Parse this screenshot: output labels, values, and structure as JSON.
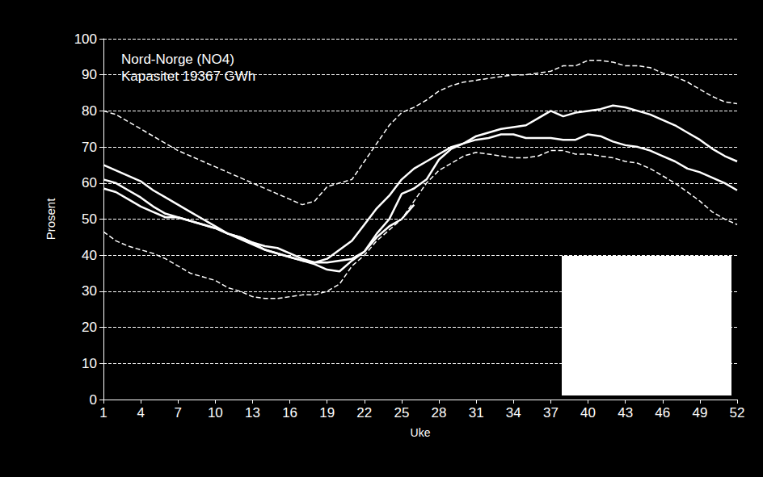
{
  "chart_data": {
    "type": "line",
    "title": "Nord-Norge (NO4)",
    "subtitle": "Kapasitet 19367 GWh",
    "x_label": "Uke",
    "y_label": "Prosent",
    "x": [
      1,
      2,
      3,
      4,
      5,
      6,
      7,
      8,
      9,
      10,
      11,
      12,
      13,
      14,
      15,
      16,
      17,
      18,
      19,
      20,
      21,
      22,
      23,
      24,
      25,
      26,
      27,
      28,
      29,
      30,
      31,
      32,
      33,
      34,
      35,
      36,
      37,
      38,
      39,
      40,
      41,
      42,
      43,
      44,
      45,
      46,
      47,
      48,
      49,
      50,
      51,
      52
    ],
    "xlim": [
      1,
      52
    ],
    "xticks": [
      1,
      4,
      7,
      10,
      13,
      16,
      19,
      22,
      25,
      28,
      31,
      34,
      37,
      40,
      43,
      46,
      49,
      52
    ],
    "ylim": [
      0,
      100
    ],
    "yticks": [
      0,
      10,
      20,
      30,
      40,
      50,
      60,
      70,
      80,
      90,
      100
    ],
    "grid": true,
    "series": [
      {
        "color": "#ffffff",
        "line_style": "dashed",
        "values": [
          80,
          79,
          77,
          75,
          73,
          71,
          69,
          67.5,
          66,
          64.5,
          63,
          61.5,
          60,
          58.5,
          57,
          55.5,
          54,
          55,
          59,
          60,
          61,
          66,
          71,
          76,
          79.5,
          81,
          83,
          85.5,
          87,
          88,
          88.5,
          89,
          89.5,
          90,
          90,
          90.5,
          91,
          92.5,
          92.5,
          94,
          94,
          93.5,
          92.5,
          92.5,
          92,
          90.5,
          89.5,
          88,
          86,
          84,
          82.5,
          82
        ]
      },
      {
        "color": "#ffffff",
        "line_style": "dashed",
        "values": [
          46.5,
          44,
          42.5,
          41.5,
          40.5,
          39,
          37,
          35,
          34,
          33,
          31,
          30,
          28.5,
          28,
          28,
          28.5,
          29,
          29,
          30,
          32,
          37,
          40,
          44,
          47,
          50,
          55,
          60,
          63.5,
          65.5,
          67.5,
          68.5,
          68,
          67.5,
          67,
          67,
          67.5,
          69,
          69,
          68,
          68,
          67.5,
          67,
          66,
          65.5,
          64,
          62,
          60,
          57.5,
          55,
          52,
          50,
          48.5
        ]
      },
      {
        "color": "#ffffff",
        "line_style": "solid",
        "values": [
          65,
          63.5,
          62,
          60.5,
          58,
          56,
          54,
          52,
          50,
          48,
          46,
          44.5,
          43,
          41.5,
          40.5,
          39.5,
          38.5,
          38,
          39,
          41.5,
          44,
          48.5,
          53,
          56.5,
          61,
          64,
          66,
          68,
          70,
          71,
          73,
          74,
          75,
          75.5,
          76,
          78,
          80,
          78.5,
          79.5,
          80,
          80.5,
          81.5,
          81,
          80,
          79,
          77.5,
          76,
          74,
          72,
          69.5,
          67.5,
          66
        ]
      },
      {
        "color": "#ffffff",
        "line_style": "solid",
        "values": [
          61,
          60,
          58,
          56,
          53.5,
          51.5,
          50.5,
          49.5,
          48.5,
          47.5,
          46,
          45,
          43.5,
          42.5,
          42,
          40.5,
          39,
          38,
          38,
          38.5,
          39,
          41,
          46,
          50,
          57,
          58.5,
          61,
          66.5,
          69.5,
          71,
          72,
          72.5,
          73.5,
          73.5,
          72.5,
          72.5,
          72.5,
          72,
          72,
          73.5,
          73,
          71.5,
          70.5,
          70,
          69,
          67.5,
          66,
          64,
          63,
          61.5,
          60,
          58
        ]
      },
      {
        "color": "#ffffff",
        "line_style": "solid",
        "values": [
          58.5,
          57.5,
          55.5,
          53.5,
          52,
          50.5,
          50.5,
          49.5,
          48.5,
          47.5,
          46,
          45,
          43.5,
          41.5,
          40.5,
          39.5,
          38.5,
          37.5,
          36,
          35.5,
          38.5,
          41,
          45,
          48,
          50,
          54,
          null,
          null,
          null,
          null,
          null,
          null,
          null,
          null,
          null,
          null,
          null,
          null,
          null,
          null,
          null,
          null,
          null,
          null,
          null,
          null,
          null,
          null,
          null,
          null,
          null,
          null
        ]
      }
    ]
  }
}
